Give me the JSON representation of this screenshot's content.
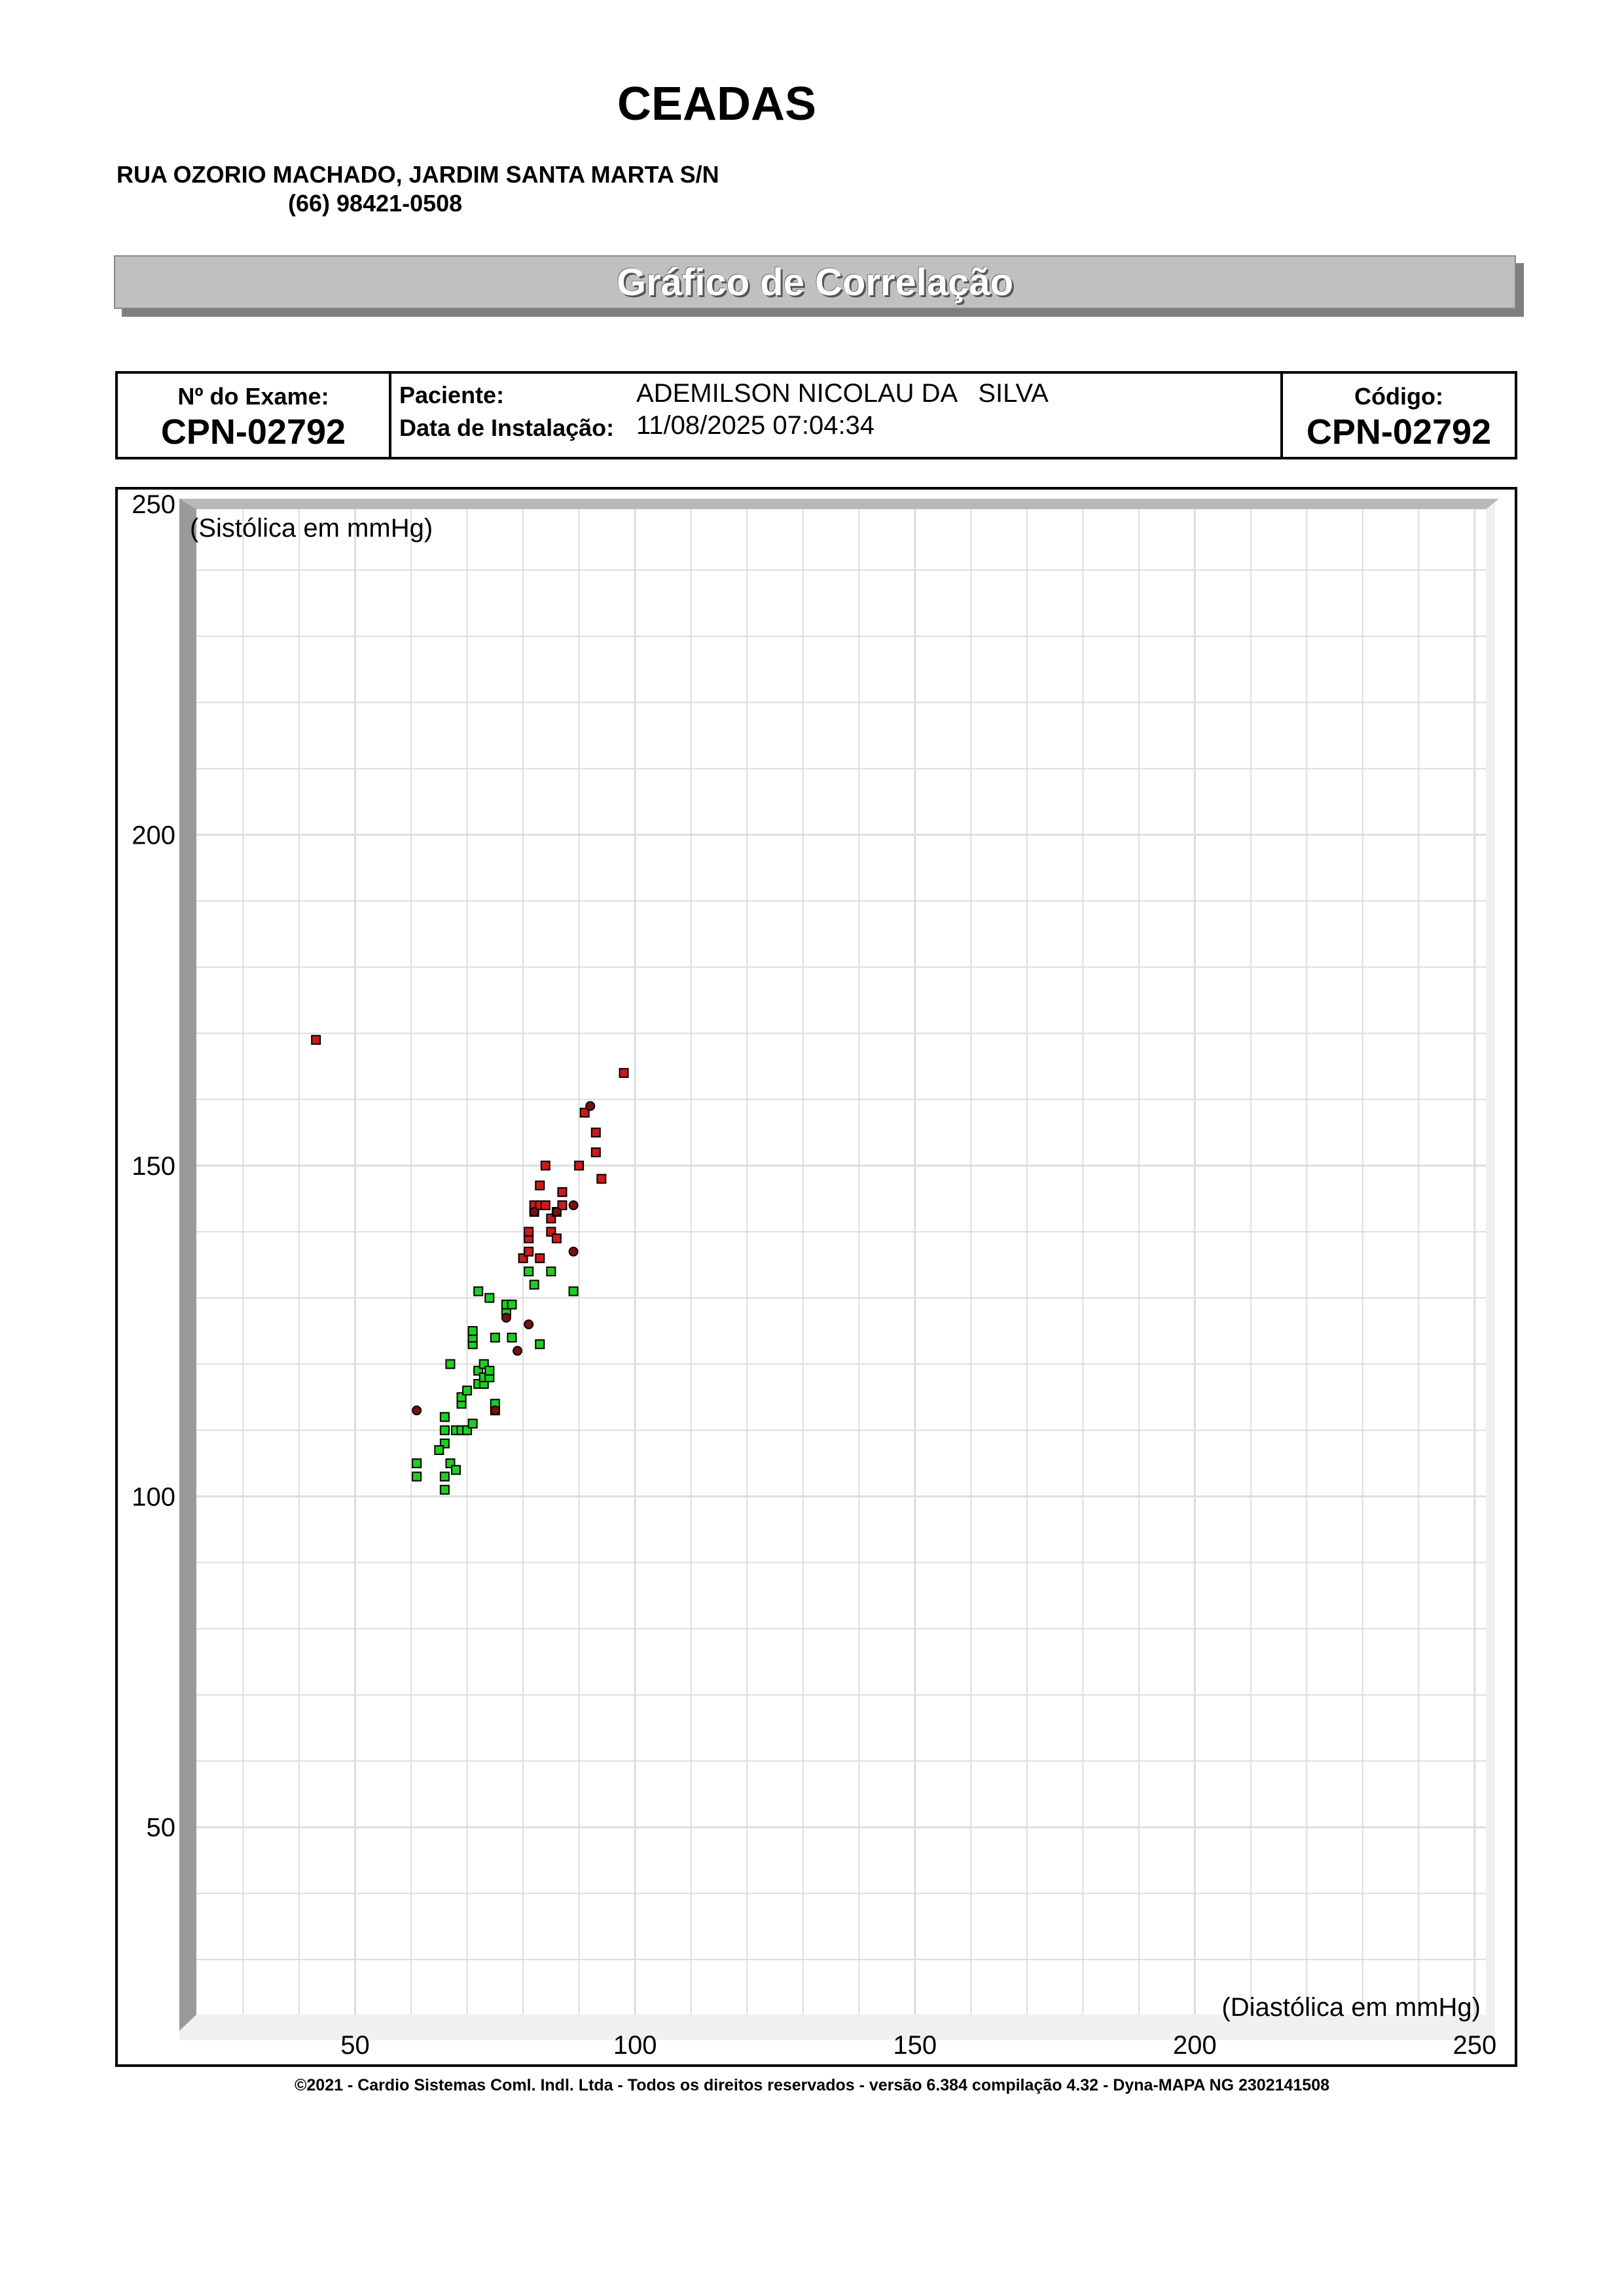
{
  "header": {
    "clinic_name": "CEADAS",
    "address": "RUA OZORIO MACHADO, JARDIM SANTA MARTA S/N",
    "phone": "(66) 98421-0508"
  },
  "report": {
    "title": "Gráfico de Correlação"
  },
  "exam_info": {
    "exam_number_label": "Nº do Exame:",
    "exam_number": "CPN-02792",
    "patient_label": "Paciente:",
    "patient_name": "ADEMILSON NICOLAU DA   SILVA",
    "install_date_label": "Data de Instalação:",
    "install_date": "11/08/2025 07:04:34",
    "code_label": "Código:",
    "code": "CPN-02792"
  },
  "chart_data": {
    "type": "scatter",
    "ylabel": "(Sistólica em mmHg)",
    "xlabel": "(Diastólica em mmHg)",
    "xlim": [
      20,
      252
    ],
    "ylim": [
      20,
      250
    ],
    "x_ticks": [
      50,
      100,
      150,
      200,
      250
    ],
    "y_ticks": [
      50,
      100,
      150,
      200,
      250
    ],
    "grid": true,
    "colors": {
      "normal": "#22cc22",
      "elevated": "#cc1a1a",
      "elevated_dark": "#7a1010",
      "point_stroke": "#000000",
      "grid": "#dddddd",
      "frame_shadow": "#b8b8b8",
      "plot_background": "#f0f0f0"
    },
    "series": [
      {
        "key": "normal",
        "marker": "square",
        "color": "#22cc22",
        "points": [
          [
            61,
            105
          ],
          [
            61,
            103
          ],
          [
            66,
            103
          ],
          [
            66,
            101
          ],
          [
            67,
            105
          ],
          [
            68,
            104
          ],
          [
            66,
            108
          ],
          [
            65,
            107
          ],
          [
            66,
            110
          ],
          [
            66,
            112
          ],
          [
            68,
            110
          ],
          [
            69,
            110
          ],
          [
            70,
            110
          ],
          [
            71,
            111
          ],
          [
            69,
            114
          ],
          [
            69,
            115
          ],
          [
            70,
            116
          ],
          [
            67,
            120
          ],
          [
            71,
            123
          ],
          [
            71,
            124
          ],
          [
            71,
            125
          ],
          [
            72,
            117
          ],
          [
            72,
            119
          ],
          [
            72,
            131
          ],
          [
            73,
            117
          ],
          [
            73,
            118
          ],
          [
            73,
            120
          ],
          [
            74,
            118
          ],
          [
            74,
            119
          ],
          [
            74,
            130
          ],
          [
            75,
            113
          ],
          [
            75,
            114
          ],
          [
            75,
            124
          ],
          [
            77,
            128
          ],
          [
            77,
            129
          ],
          [
            78,
            129
          ],
          [
            78,
            124
          ],
          [
            81,
            134
          ],
          [
            82,
            132
          ],
          [
            83,
            123
          ],
          [
            85,
            134
          ],
          [
            89,
            131
          ]
        ]
      },
      {
        "key": "elevated",
        "marker": "square",
        "color": "#cc1a1a",
        "points": [
          [
            43,
            169
          ],
          [
            80,
            136
          ],
          [
            81,
            137
          ],
          [
            81,
            139
          ],
          [
            81,
            140
          ],
          [
            82,
            143
          ],
          [
            82,
            144
          ],
          [
            83,
            144
          ],
          [
            83,
            147
          ],
          [
            83,
            136
          ],
          [
            84,
            144
          ],
          [
            84,
            150
          ],
          [
            85,
            142
          ],
          [
            85,
            140
          ],
          [
            86,
            139
          ],
          [
            86,
            143
          ],
          [
            87,
            146
          ],
          [
            87,
            144
          ],
          [
            90,
            150
          ],
          [
            91,
            158
          ],
          [
            93,
            155
          ],
          [
            93,
            152
          ],
          [
            94,
            148
          ],
          [
            98,
            164
          ]
        ]
      },
      {
        "key": "elevated_dark",
        "marker": "circle",
        "color": "#7a1010",
        "points": [
          [
            61,
            113
          ],
          [
            75,
            113
          ],
          [
            77,
            127
          ],
          [
            79,
            122
          ],
          [
            81,
            126
          ],
          [
            82,
            143
          ],
          [
            86,
            143
          ],
          [
            89,
            144
          ],
          [
            89,
            137
          ],
          [
            92,
            159
          ]
        ]
      }
    ]
  },
  "footer": {
    "text": "©2021 - Cardio Sistemas Coml. Indl. Ltda - Todos os direitos reservados - versão 6.384 compilação 4.32 - Dyna-MAPA NG 2302141508"
  }
}
